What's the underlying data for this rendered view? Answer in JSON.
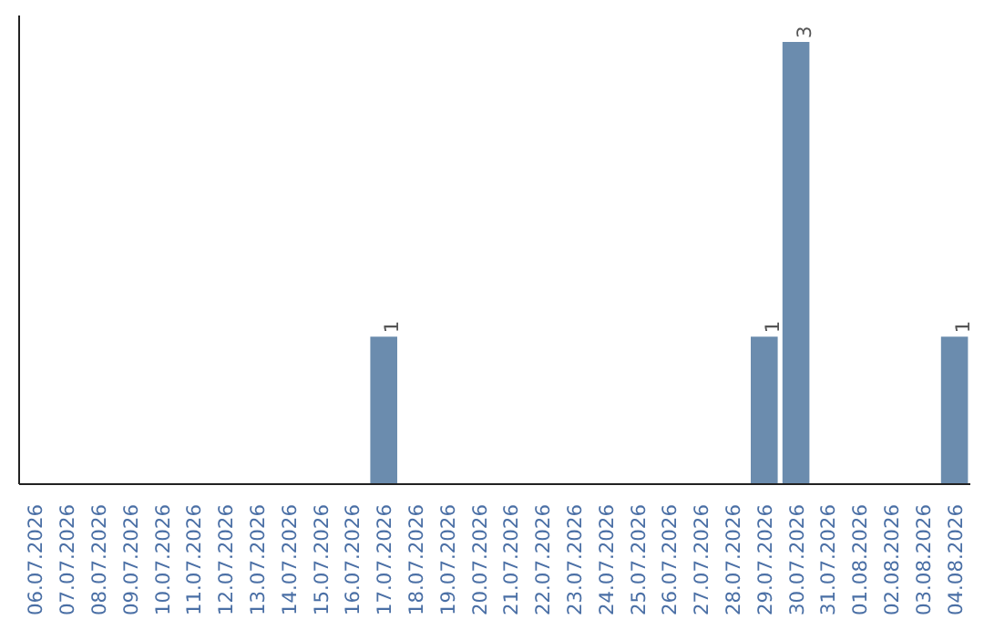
{
  "chart_data": {
    "type": "bar",
    "categories": [
      "06.07.2026",
      "07.07.2026",
      "08.07.2026",
      "09.07.2026",
      "10.07.2026",
      "11.07.2026",
      "12.07.2026",
      "13.07.2026",
      "14.07.2026",
      "15.07.2026",
      "16.07.2026",
      "17.07.2026",
      "18.07.2026",
      "19.07.2026",
      "20.07.2026",
      "21.07.2026",
      "22.07.2026",
      "23.07.2026",
      "24.07.2026",
      "25.07.2026",
      "26.07.2026",
      "27.07.2026",
      "28.07.2026",
      "29.07.2026",
      "30.07.2026",
      "31.07.2026",
      "01.08.2026",
      "02.08.2026",
      "03.08.2026",
      "04.08.2026"
    ],
    "values": [
      0,
      0,
      0,
      0,
      0,
      0,
      0,
      0,
      0,
      0,
      0,
      1,
      0,
      0,
      0,
      0,
      0,
      0,
      0,
      0,
      0,
      0,
      0,
      1,
      3,
      0,
      0,
      0,
      0,
      1
    ],
    "value_labels": [
      null,
      null,
      null,
      null,
      null,
      null,
      null,
      null,
      null,
      null,
      null,
      "1",
      null,
      null,
      null,
      null,
      null,
      null,
      null,
      null,
      null,
      null,
      null,
      "1",
      "3",
      null,
      null,
      null,
      null,
      "1"
    ],
    "color": "#6b8cae",
    "grid": false
  }
}
